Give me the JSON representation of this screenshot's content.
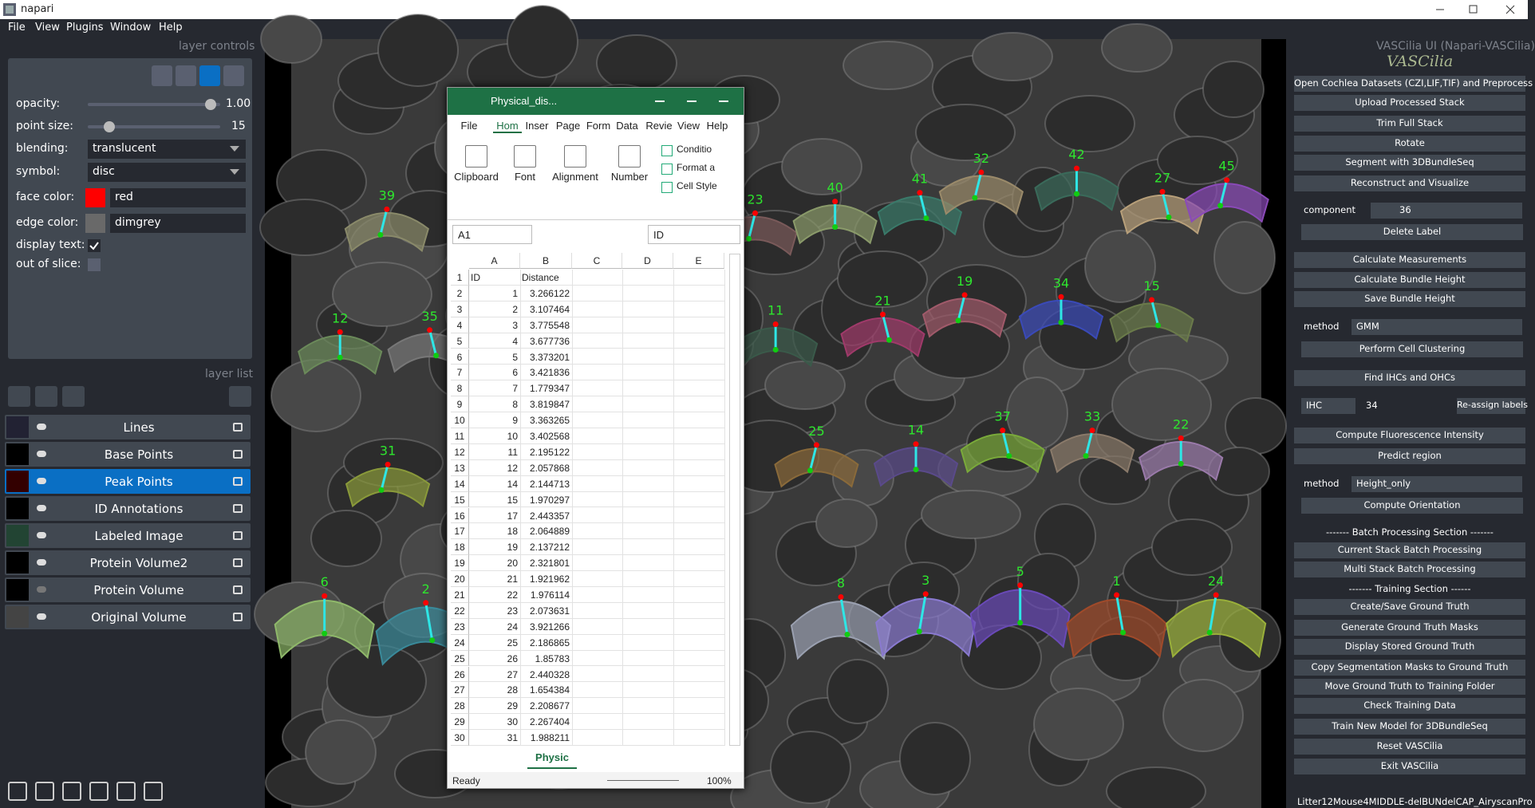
{
  "window": {
    "title": "napari"
  },
  "menu": [
    "File",
    "View",
    "Plugins",
    "Window",
    "Help"
  ],
  "layer_controls": {
    "title": "layer controls",
    "opacity": {
      "label": "opacity:",
      "value": "1.00"
    },
    "point_size": {
      "label": "point size:",
      "value": "15"
    },
    "blending": {
      "label": "blending:",
      "value": "translucent"
    },
    "symbol": {
      "label": "symbol:",
      "value": "disc"
    },
    "face_color": {
      "label": "face color:",
      "value": "red"
    },
    "edge_color": {
      "label": "edge color:",
      "value": "dimgrey"
    },
    "display_text": {
      "label": "display text:"
    },
    "out_of_slice": {
      "label": "out of slice:"
    }
  },
  "layer_list": {
    "title": "layer list",
    "layers": [
      "Lines",
      "Base Points",
      "Peak Points",
      "ID Annotations",
      "Labeled Image",
      "Protein Volume2",
      "Protein Volume",
      "Original Volume"
    ]
  },
  "viewer": {
    "annotations": [
      "39",
      "12",
      "35",
      "31",
      "6",
      "2",
      "23",
      "40",
      "41",
      "32",
      "42",
      "27",
      "45",
      "11",
      "21",
      "19",
      "34",
      "15",
      "25",
      "14",
      "37",
      "33",
      "22",
      "8",
      "3",
      "5",
      "1",
      "24"
    ]
  },
  "spreadsheet": {
    "title": "Physical_dis...",
    "tabs": [
      "File",
      "Hom",
      "Inser",
      "Page",
      "Form",
      "Data",
      "Revie",
      "View",
      "Help"
    ],
    "groups": [
      "Clipboard",
      "Font",
      "Alignment",
      "Number"
    ],
    "styles": [
      "Conditio",
      "Format a",
      "Cell Style"
    ],
    "name_box": "A1",
    "formula": "ID",
    "columns": [
      "A",
      "B",
      "C",
      "D",
      "E"
    ],
    "row_numbers": [
      1,
      2,
      3,
      4,
      5,
      6,
      7,
      8,
      9,
      10,
      11,
      12,
      13,
      14,
      15,
      16,
      17,
      18,
      19,
      20,
      21,
      22,
      23,
      24,
      25,
      26,
      27,
      28,
      29,
      30
    ],
    "rows": [
      [
        "ID",
        "Distance"
      ],
      [
        1,
        3.266122
      ],
      [
        2,
        3.107464
      ],
      [
        3,
        3.775548
      ],
      [
        4,
        3.677736
      ],
      [
        5,
        3.373201
      ],
      [
        6,
        3.421836
      ],
      [
        7,
        1.779347
      ],
      [
        8,
        3.819847
      ],
      [
        9,
        3.363265
      ],
      [
        10,
        3.402568
      ],
      [
        11,
        2.195122
      ],
      [
        12,
        2.057868
      ],
      [
        14,
        2.144713
      ],
      [
        15,
        1.970297
      ],
      [
        17,
        2.443357
      ],
      [
        18,
        2.064889
      ],
      [
        19,
        2.137212
      ],
      [
        20,
        2.321801
      ],
      [
        21,
        1.921962
      ],
      [
        22,
        1.976114
      ],
      [
        23,
        2.073631
      ],
      [
        24,
        3.921266
      ],
      [
        25,
        2.186865
      ],
      [
        26,
        1.85783
      ],
      [
        27,
        2.440328
      ],
      [
        28,
        1.654384
      ],
      [
        29,
        2.208677
      ],
      [
        30,
        2.267404
      ],
      [
        31,
        1.988211
      ]
    ],
    "sheet_tab": "Physic",
    "status": "Ready",
    "zoom": "100%"
  },
  "plugin": {
    "title": "VASCilia UI (Napari-VASCilia)",
    "logo": "VASCilia",
    "top_buttons": [
      "Open Cochlea Datasets (CZI,LIF,TIF) and Preprocess",
      "Upload Processed Stack",
      "Trim Full Stack",
      "Rotate",
      "Segment with 3DBundleSeq",
      "Reconstruct and Visualize"
    ],
    "component": {
      "label": "component",
      "value": "36"
    },
    "delete_button": "Delete Label",
    "measure_buttons": [
      "Calculate Measurements",
      "Calculate Bundle Height",
      "Save Bundle Height"
    ],
    "method1": {
      "label": "method",
      "value": "GMM"
    },
    "cluster_button": "Perform Cell Clustering",
    "find_button": "Find IHCs and OHCs",
    "reassign": {
      "type": "IHC",
      "value": "34",
      "button": "Re-assign labels"
    },
    "fluor_buttons": [
      "Compute Fluorescence Intensity",
      "Predict region"
    ],
    "method2": {
      "label": "method",
      "value": "Height_only"
    },
    "orientation_button": "Compute Orientation",
    "batch_heading": "------- Batch Processing Section -------",
    "batch_buttons": [
      "Current Stack Batch Processing",
      "Multi Stack Batch Processing"
    ],
    "training_heading": "------- Training Section ------",
    "training_buttons": [
      "Create/Save Ground Truth",
      "Generate Ground Truth Masks",
      "Display Stored Ground Truth",
      "Copy Segmentation Masks to Ground Truth",
      "Move Ground Truth to Training Folder",
      "Check Training Data",
      "Train New Model for 3DBundleSeq",
      "Reset VASCilia",
      "Exit VASCilia"
    ],
    "footer": "Litter12Mouse4MIDDLE-delBUNdelCAP_AiryscanPro"
  }
}
